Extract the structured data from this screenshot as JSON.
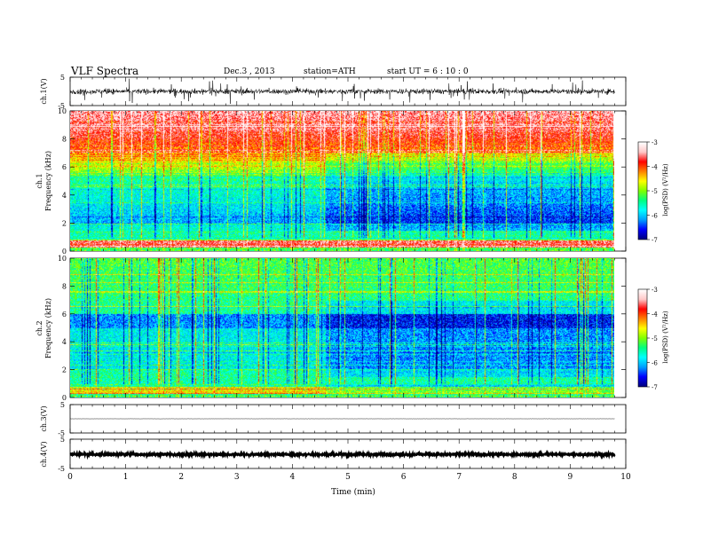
{
  "header": {
    "title": "VLF  Spectra",
    "date": "Dec.3  , 2013",
    "station": "station=ATH",
    "start_ut": "start  UT  =   6  : 10 : 0"
  },
  "chart_data": [
    {
      "type": "line",
      "ylabel": "ch.1(V)",
      "ylim": [
        -5,
        5
      ],
      "yticks": [
        "5",
        "-5"
      ],
      "x_range": [
        0,
        9.8
      ],
      "baseline": 0,
      "noise_amplitude": 0.9,
      "spike_amplitude": 2.5
    },
    {
      "type": "heatmap",
      "ylabel_ch": "ch.1",
      "ylabel": "Frequency  (kHz)",
      "ylim": [
        0,
        10
      ],
      "yticks": [
        "0",
        "2",
        "4",
        "6",
        "8",
        "10"
      ],
      "x_range": [
        0,
        9.8
      ],
      "colorbar": {
        "label": "log(PSD) (V²/Hz)",
        "range": [
          -7,
          -3
        ],
        "ticks": [
          "-3",
          "-4",
          "-5",
          "-6",
          "-7"
        ]
      },
      "dark_band_start_min": 4.6
    },
    {
      "type": "heatmap",
      "ylabel_ch": "ch.2",
      "ylabel": "Frequency  (kHz)",
      "ylim": [
        0,
        10
      ],
      "yticks": [
        "0",
        "2",
        "4",
        "6",
        "8",
        "10"
      ],
      "x_range": [
        0,
        9.8
      ],
      "colorbar": {
        "label": "log(PSD) (V²/Hz)",
        "range": [
          -7,
          -3
        ],
        "ticks": [
          "-3",
          "-4",
          "-5",
          "-6",
          "-7"
        ]
      },
      "dark_band_start_min": 4.6
    },
    {
      "type": "line",
      "ylabel": "ch.3(V)",
      "ylim": [
        -5,
        5
      ],
      "yticks": [
        "5",
        "-5"
      ],
      "x_range": [
        0,
        9.8
      ],
      "baseline": 0,
      "noise_amplitude": 0.05
    },
    {
      "type": "line",
      "ylabel": "ch.4(V)",
      "ylim": [
        -5,
        5
      ],
      "yticks": [
        "5",
        "-5"
      ],
      "x_range": [
        0,
        9.8
      ],
      "baseline": -0.2,
      "noise_amplitude": 0.35
    }
  ],
  "xaxis": {
    "label": "Time  (min)",
    "range": [
      0,
      10
    ],
    "ticks": [
      "0",
      "1",
      "2",
      "3",
      "4",
      "5",
      "6",
      "7",
      "8",
      "9",
      "10"
    ]
  },
  "colors": {
    "axis": "#000000",
    "trace": "#000000",
    "colormap": [
      "#000080",
      "#0000ff",
      "#00a0ff",
      "#00ffff",
      "#00ff80",
      "#80ff00",
      "#ffff00",
      "#ff8000",
      "#ff0000",
      "#ffc8c8",
      "#ffffff"
    ]
  }
}
